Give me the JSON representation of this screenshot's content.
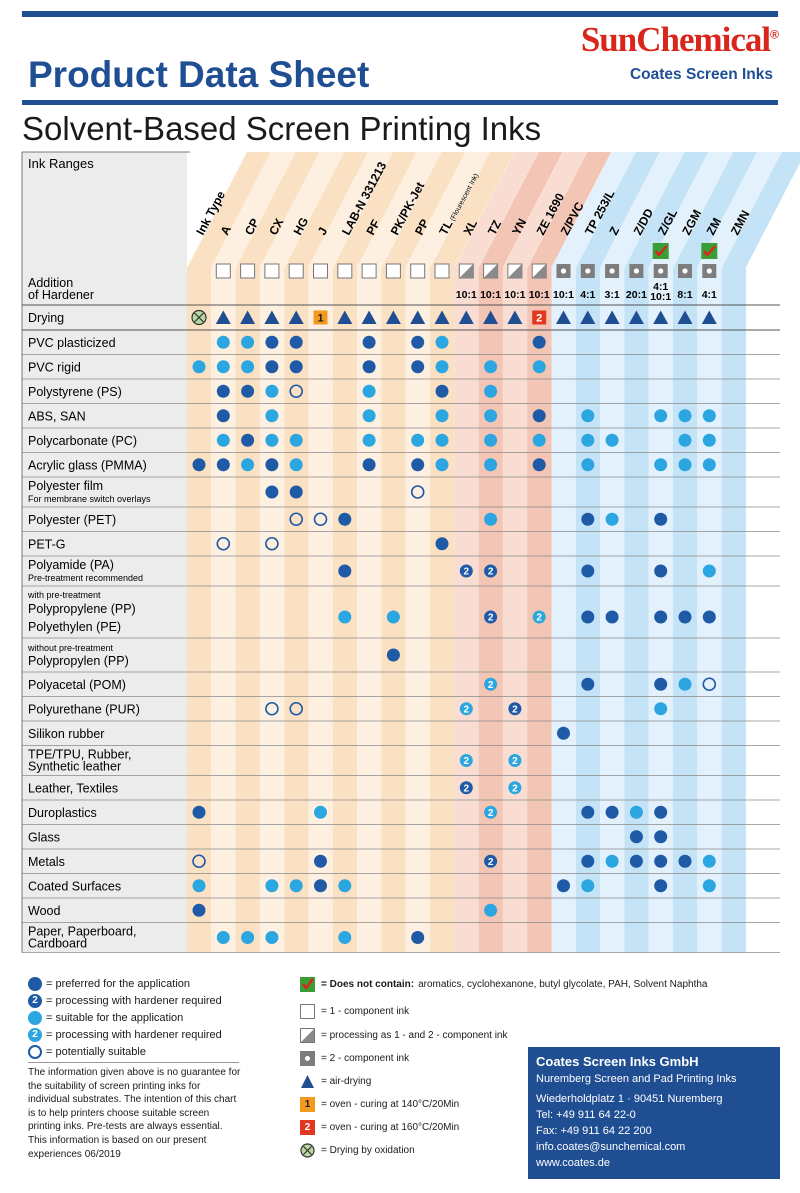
{
  "header": {
    "title": "Product Data Sheet",
    "brand": "SunChemical",
    "brand_mark": "®",
    "subbrand": "Coates Screen Inks",
    "subtitle": "Solvent-Based Screen Printing Inks"
  },
  "table": {
    "corner_label": "Ink Ranges",
    "hardener_label_1": "Addition",
    "hardener_label_2": "of Hardener",
    "drying_label": "Drying",
    "columns": [
      {
        "name": "Ink Type",
        "hardener": "none",
        "ratio": "",
        "drying": "oxidation",
        "green": false
      },
      {
        "name": "A",
        "hardener": "1c",
        "ratio": "",
        "drying": "air",
        "green": false
      },
      {
        "name": "CP",
        "hardener": "1c",
        "ratio": "",
        "drying": "air",
        "green": false
      },
      {
        "name": "CX",
        "hardener": "1c",
        "ratio": "",
        "drying": "air",
        "green": false
      },
      {
        "name": "HG",
        "hardener": "1c",
        "ratio": "",
        "drying": "air",
        "green": false
      },
      {
        "name": "J",
        "hardener": "1c",
        "ratio": "",
        "drying": "oven1",
        "green": false
      },
      {
        "name": "LAB-N 331213",
        "hardener": "1c",
        "ratio": "",
        "drying": "air",
        "green": false
      },
      {
        "name": "PF",
        "hardener": "1c",
        "ratio": "",
        "drying": "air",
        "green": false
      },
      {
        "name": "PK/PK-Jet",
        "hardener": "1c",
        "ratio": "",
        "drying": "air",
        "green": false
      },
      {
        "name": "PP",
        "hardener": "1c",
        "ratio": "",
        "drying": "air",
        "green": false
      },
      {
        "name": "TL",
        "note": "(Flourescent Ink)",
        "hardener": "1c",
        "ratio": "",
        "drying": "air",
        "green": false
      },
      {
        "name": "XL",
        "hardener": "12c",
        "ratio": "10:1",
        "drying": "air",
        "green": false
      },
      {
        "name": "TZ",
        "hardener": "12c",
        "ratio": "10:1",
        "drying": "air",
        "green": false
      },
      {
        "name": "YN",
        "hardener": "12c",
        "ratio": "10:1",
        "drying": "air",
        "green": false
      },
      {
        "name": "ZE 1690",
        "hardener": "12c",
        "ratio": "10:1",
        "drying": "oven2",
        "green": false
      },
      {
        "name": "Z/PVC",
        "hardener": "2c",
        "ratio": "10:1",
        "drying": "air",
        "green": false
      },
      {
        "name": "TP 253/L",
        "hardener": "2c",
        "ratio": "4:1",
        "drying": "air",
        "green": false
      },
      {
        "name": "Z",
        "hardener": "2c",
        "ratio": "3:1",
        "drying": "air",
        "green": false
      },
      {
        "name": "Z/DD",
        "hardener": "2c",
        "ratio": "20:1",
        "drying": "air",
        "green": false
      },
      {
        "name": "Z/GL",
        "hardener": "2c",
        "ratio": "4:1",
        "ratio2": "10:1",
        "drying": "air",
        "green": true
      },
      {
        "name": "ZGM",
        "hardener": "2c",
        "ratio": "8:1",
        "drying": "air",
        "green": false
      },
      {
        "name": "ZM",
        "hardener": "2c",
        "ratio": "4:1",
        "drying": "air",
        "green": true
      },
      {
        "name": "ZMN",
        "hardener": "none",
        "ratio": "",
        "drying": "none",
        "green": false
      }
    ],
    "rows": [
      {
        "label": "PVC plasticized",
        "cells": [
          "",
          "L",
          "L",
          "D",
          "D",
          "",
          "",
          "D",
          "",
          "D",
          "L",
          "",
          "",
          "",
          "D",
          "",
          "",
          "",
          "",
          "",
          "",
          "",
          ""
        ]
      },
      {
        "label": "PVC rigid",
        "cells": [
          "L",
          "L",
          "L",
          "D",
          "D",
          "",
          "",
          "D",
          "",
          "D",
          "L",
          "",
          "L",
          "",
          "L",
          "",
          "",
          "",
          "",
          "",
          "",
          "",
          ""
        ]
      },
      {
        "label": "Polystyrene (PS)",
        "cells": [
          "",
          "D",
          "D",
          "L",
          "O",
          "",
          "",
          "L",
          "",
          "",
          "D",
          "",
          "L",
          "",
          "",
          "",
          "",
          "",
          "",
          "",
          "",
          "",
          ""
        ]
      },
      {
        "label": "ABS, SAN",
        "cells": [
          "",
          "D",
          "",
          "L",
          "",
          "",
          "",
          "L",
          "",
          "",
          "L",
          "",
          "L",
          "",
          "D",
          "",
          "L",
          "",
          "",
          "L",
          "L",
          "L",
          ""
        ]
      },
      {
        "label": "Polycarbonate (PC)",
        "cells": [
          "",
          "L",
          "D",
          "L",
          "L",
          "",
          "",
          "L",
          "",
          "L",
          "L",
          "",
          "L",
          "",
          "L",
          "",
          "L",
          "L",
          "",
          "",
          "L",
          "L",
          ""
        ]
      },
      {
        "label": "Acrylic glass (PMMA)",
        "cells": [
          "D",
          "D",
          "L",
          "D",
          "L",
          "",
          "",
          "D",
          "",
          "D",
          "L",
          "",
          "L",
          "",
          "D",
          "",
          "L",
          "",
          "",
          "L",
          "L",
          "L",
          ""
        ]
      },
      {
        "label": "Polyester film",
        "sub": "For membrane switch overlays",
        "cells": [
          "",
          "",
          "",
          "D",
          "D",
          "",
          "",
          "",
          "",
          "O",
          "",
          "",
          "",
          "",
          "",
          "",
          "",
          "",
          "",
          "",
          "",
          "",
          ""
        ]
      },
      {
        "label": "Polyester (PET)",
        "cells": [
          "",
          "",
          "",
          "",
          "O",
          "O",
          "D",
          "",
          "",
          "",
          "",
          "",
          "L",
          "",
          "",
          "",
          "D",
          "L",
          "",
          "D",
          "",
          "",
          ""
        ]
      },
      {
        "label": "PET-G",
        "cells": [
          "",
          "O",
          "",
          "O",
          "",
          "",
          "",
          "",
          "",
          "",
          "D",
          "",
          "",
          "",
          "",
          "",
          "",
          "",
          "",
          "",
          "",
          "",
          ""
        ]
      },
      {
        "label": "Polyamide (PA)",
        "sub": "Pre-treatment recommended",
        "cells": [
          "",
          "",
          "",
          "",
          "",
          "",
          "D",
          "",
          "",
          "",
          "",
          "D2",
          "D2",
          "",
          "",
          "",
          "D",
          "",
          "",
          "D",
          "",
          "L",
          ""
        ]
      },
      {
        "label": "Polypropylene (PP)",
        "label2": "Polyethylen (PE)",
        "pre": "with pre-treatment",
        "tall": true,
        "cells": [
          "",
          "",
          "",
          "",
          "",
          "",
          "L",
          "",
          "L",
          "",
          "",
          "",
          "D2",
          "",
          "L2",
          "",
          "D",
          "D",
          "",
          "D",
          "D",
          "D",
          ""
        ]
      },
      {
        "label": "Polypropylen (PP)",
        "pre": "without pre-treatment",
        "cells": [
          "",
          "",
          "",
          "",
          "",
          "",
          "",
          "",
          "D",
          "",
          "",
          "",
          "",
          "",
          "",
          "",
          "",
          "",
          "",
          "",
          "",
          "",
          ""
        ]
      },
      {
        "label": "Polyacetal (POM)",
        "cells": [
          "",
          "",
          "",
          "",
          "",
          "",
          "",
          "",
          "",
          "",
          "",
          "",
          "L2",
          "",
          "",
          "",
          "D",
          "",
          "",
          "D",
          "L",
          "O",
          ""
        ]
      },
      {
        "label": "Polyurethane (PUR)",
        "cells": [
          "",
          "",
          "",
          "O",
          "O",
          "",
          "",
          "",
          "",
          "",
          "",
          "L2",
          "",
          "D2",
          "",
          "",
          "",
          "",
          "",
          "L",
          "",
          "",
          ""
        ]
      },
      {
        "label": "Silikon rubber",
        "cells": [
          "",
          "",
          "",
          "",
          "",
          "",
          "",
          "",
          "",
          "",
          "",
          "",
          "",
          "",
          "",
          "D",
          "",
          "",
          "",
          "",
          "",
          "",
          ""
        ]
      },
      {
        "label": "TPE/TPU, Rubber,",
        "label2": "Synthetic leather",
        "cells": [
          "",
          "",
          "",
          "",
          "",
          "",
          "",
          "",
          "",
          "",
          "",
          "L2",
          "",
          "L2",
          "",
          "",
          "",
          "",
          "",
          "",
          "",
          "",
          ""
        ]
      },
      {
        "label": "Leather, Textiles",
        "cells": [
          "",
          "",
          "",
          "",
          "",
          "",
          "",
          "",
          "",
          "",
          "",
          "D2",
          "",
          "L2",
          "",
          "",
          "",
          "",
          "",
          "",
          "",
          "",
          ""
        ]
      },
      {
        "label": "Duroplastics",
        "cells": [
          "D",
          "",
          "",
          "",
          "",
          "L",
          "",
          "",
          "",
          "",
          "",
          "",
          "L2",
          "",
          "",
          "",
          "D",
          "D",
          "L",
          "D",
          "",
          "",
          ""
        ]
      },
      {
        "label": "Glass",
        "cells": [
          "",
          "",
          "",
          "",
          "",
          "",
          "",
          "",
          "",
          "",
          "",
          "",
          "",
          "",
          "",
          "",
          "",
          "",
          "D",
          "D",
          "",
          "",
          ""
        ]
      },
      {
        "label": "Metals",
        "cells": [
          "O",
          "",
          "",
          "",
          "",
          "D",
          "",
          "",
          "",
          "",
          "",
          "",
          "D2",
          "",
          "",
          "",
          "D",
          "L",
          "D",
          "D",
          "D",
          "L",
          ""
        ]
      },
      {
        "label": "Coated Surfaces",
        "cells": [
          "L",
          "",
          "",
          "L",
          "L",
          "D",
          "L",
          "",
          "",
          "",
          "",
          "",
          "",
          "",
          "",
          "D",
          "L",
          "",
          "",
          "D",
          "",
          "L",
          ""
        ]
      },
      {
        "label": "Wood",
        "cells": [
          "D",
          "",
          "",
          "",
          "",
          "",
          "",
          "",
          "",
          "",
          "",
          "",
          "L",
          "",
          "",
          "",
          "",
          "",
          "",
          "",
          "",
          "",
          ""
        ]
      },
      {
        "label": "Paper, Paperboard,",
        "label2": "Cardboard",
        "cells": [
          "",
          "L",
          "L",
          "L",
          "",
          "",
          "L",
          "",
          "",
          "D",
          "",
          "",
          "",
          "",
          "",
          "",
          "",
          "",
          "",
          "",
          "",
          "",
          ""
        ]
      }
    ]
  },
  "legend_left": {
    "preferred": "= preferred for the application",
    "preferred_hardener": "= processing with hardener required",
    "suitable": "= suitable for the application",
    "suitable_hardener": "= processing with hardener required",
    "potential": "= potentially suitable",
    "symbol_2": "2"
  },
  "disclaimer": "The information given above is no guarantee for the suitability of screen printing inks for individual substrates. The intention of this chart is to help printers choose suitable screen printing inks. Pre-tests are always essential. This information is based on our present experiences 06/2019",
  "legend_right": {
    "free_of_bold": "= Does not contain:",
    "free_of_list": "aromatics, cyclohexanone, butyl glycolate, PAH, Solvent Naphtha",
    "one_component": "= 1 - component ink",
    "one_two_component": "= processing as 1 - and 2 - component ink",
    "two_component": "= 2 - component ink",
    "air_drying": "= air-drying",
    "oven_140": "= oven - curing at 140°C/20Min",
    "oven_160": "= oven - curing at 160°C/20Min",
    "oxidation": "= Drying by oxidation",
    "oven_1_num": "1",
    "oven_2_num": "2"
  },
  "contact": {
    "company": "Coates Screen Inks GmbH",
    "desc": "Nuremberg Screen and Pad Printing Inks",
    "address": "Wiederholdplatz 1 · 90451 Nuremberg",
    "tel": "Tel:  +49 911 64 22-0",
    "fax": "Fax: +49 911 64 22 200",
    "email": "info.coates@sunchemical.com",
    "web": "www.coates.de"
  },
  "colors": {
    "navy": "#1f4e93",
    "red": "#d9261c",
    "dark_dot": "#1e5aa6",
    "light_dot": "#2ca6e0",
    "orange_band": "#fbe1c4",
    "red_band": "#f3c5b5",
    "blue_band": "#c4e3f6",
    "oven_orange": "#f39a1e",
    "oven_red": "#e2381f",
    "green": "#3a9e34"
  }
}
